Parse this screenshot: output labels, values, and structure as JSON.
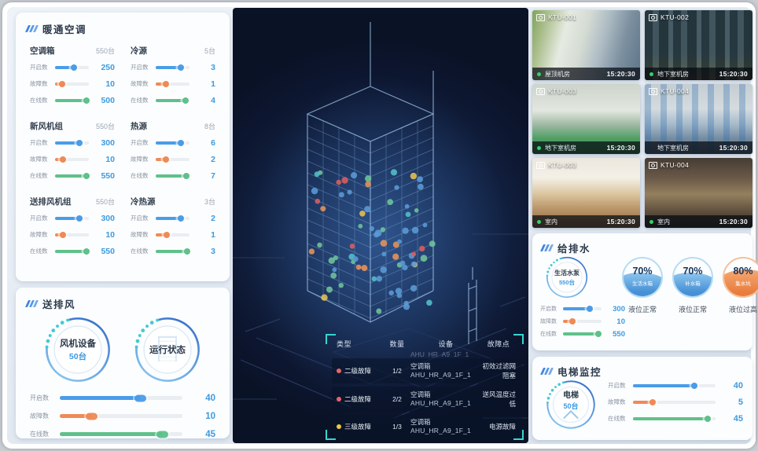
{
  "colors": {
    "accent_blue": "#3d9be0",
    "bar_blue": "#4a9ce8",
    "bar_orange": "#ef8a55",
    "bar_green": "#5fc08b",
    "alarm_red": "#e4646a",
    "alarm_yellow": "#eec643",
    "live_green": "#35d06a",
    "bracket_cyan": "#35d6d2"
  },
  "hvac": {
    "title": "暖通空调",
    "groups": [
      {
        "name": "空调箱",
        "total": "550台",
        "metrics": [
          {
            "label": "开启数",
            "value": "250",
            "pct": 55
          },
          {
            "label": "故障数",
            "value": "10",
            "pct": 22
          },
          {
            "label": "在线数",
            "value": "500",
            "pct": 92
          }
        ]
      },
      {
        "name": "冷源",
        "total": "5台",
        "metrics": [
          {
            "label": "开启数",
            "value": "3",
            "pct": 75
          },
          {
            "label": "故障数",
            "value": "1",
            "pct": 30
          },
          {
            "label": "在线数",
            "value": "4",
            "pct": 88
          }
        ]
      },
      {
        "name": "新风机组",
        "total": "550台",
        "metrics": [
          {
            "label": "开启数",
            "value": "300",
            "pct": 72
          },
          {
            "label": "故障数",
            "value": "10",
            "pct": 24
          },
          {
            "label": "在线数",
            "value": "550",
            "pct": 92
          }
        ]
      },
      {
        "name": "热源",
        "total": "8台",
        "metrics": [
          {
            "label": "开启数",
            "value": "6",
            "pct": 74
          },
          {
            "label": "故障数",
            "value": "2",
            "pct": 30
          },
          {
            "label": "在线数",
            "value": "7",
            "pct": 90
          }
        ]
      },
      {
        "name": "送排风机组",
        "total": "550台",
        "metrics": [
          {
            "label": "开启数",
            "value": "300",
            "pct": 72
          },
          {
            "label": "故障数",
            "value": "10",
            "pct": 24
          },
          {
            "label": "在线数",
            "value": "550",
            "pct": 92
          }
        ]
      },
      {
        "name": "冷热源",
        "total": "3台",
        "metrics": [
          {
            "label": "开启数",
            "value": "2",
            "pct": 74
          },
          {
            "label": "故障数",
            "value": "1",
            "pct": 32
          },
          {
            "label": "在线数",
            "value": "3",
            "pct": 92
          }
        ]
      }
    ]
  },
  "fan": {
    "title": "送排风",
    "gauges": [
      {
        "label": "风机设备",
        "sub": "50台"
      },
      {
        "label": "运行状态",
        "sub": ""
      }
    ],
    "metrics": [
      {
        "label": "开启数",
        "value": "40",
        "pct": 66
      },
      {
        "label": "故障数",
        "value": "10",
        "pct": 26
      },
      {
        "label": "在线数",
        "value": "45",
        "pct": 84
      }
    ]
  },
  "monitor": {
    "cameras": [
      {
        "id": "KTU-001",
        "location": "屋顶机房",
        "time": "15:20:30",
        "live": true
      },
      {
        "id": "KTU-002",
        "location": "地下室机房",
        "time": "15:20:30",
        "live": true
      },
      {
        "id": "KTU-003",
        "location": "地下室机房",
        "time": "15:20:30",
        "live": true
      },
      {
        "id": "KTU-004",
        "location": "地下室机房",
        "time": "15:20:30",
        "live": false
      },
      {
        "id": "KTU-003",
        "location": "室内",
        "time": "15:20:30",
        "live": true
      },
      {
        "id": "KTU-004",
        "location": "室内",
        "time": "15:20:30",
        "live": true
      }
    ]
  },
  "water": {
    "title": "给排水",
    "gauge": {
      "label": "生活水泵",
      "sub": "550台"
    },
    "tanks": [
      {
        "pct": "70%",
        "name": "生活水箱",
        "status": "液位正常"
      },
      {
        "pct": "70%",
        "name": "补水箱",
        "status": "液位正常"
      },
      {
        "pct": "80%",
        "name": "集水坑",
        "status": "液位过高"
      }
    ],
    "metrics": [
      {
        "label": "开启数",
        "value": "300",
        "pct": 70
      },
      {
        "label": "故障数",
        "value": "10",
        "pct": 24
      },
      {
        "label": "在线数",
        "value": "550",
        "pct": 92
      }
    ]
  },
  "elevator": {
    "title": "电梯监控",
    "gauge": {
      "label": "电梯",
      "sub": "50台"
    },
    "metrics": [
      {
        "label": "开启数",
        "value": "40",
        "pct": 74
      },
      {
        "label": "故障数",
        "value": "5",
        "pct": 24
      },
      {
        "label": "在线数",
        "value": "45",
        "pct": 90
      }
    ]
  },
  "fault_table": {
    "headers": [
      "类型",
      "数量",
      "设备",
      "故障点"
    ],
    "partial_device": "AHU_HR_A9_1F_1",
    "rows": [
      {
        "level": "二级故障",
        "severity": "red",
        "count": "1/2",
        "device_type": "空调箱",
        "device_id": "AHU_HR_A9_1F_1",
        "fault": "初效过滤网阻塞"
      },
      {
        "level": "二级故障",
        "severity": "red",
        "count": "2/2",
        "device_type": "空调箱",
        "device_id": "AHU_HR_A9_1F_1",
        "fault": "送风温度过低"
      },
      {
        "level": "三级故障",
        "severity": "yellow",
        "count": "1/3",
        "device_type": "空调箱",
        "device_id": "AHU_HR_A9_1F_1",
        "fault": "电源故障"
      }
    ]
  }
}
